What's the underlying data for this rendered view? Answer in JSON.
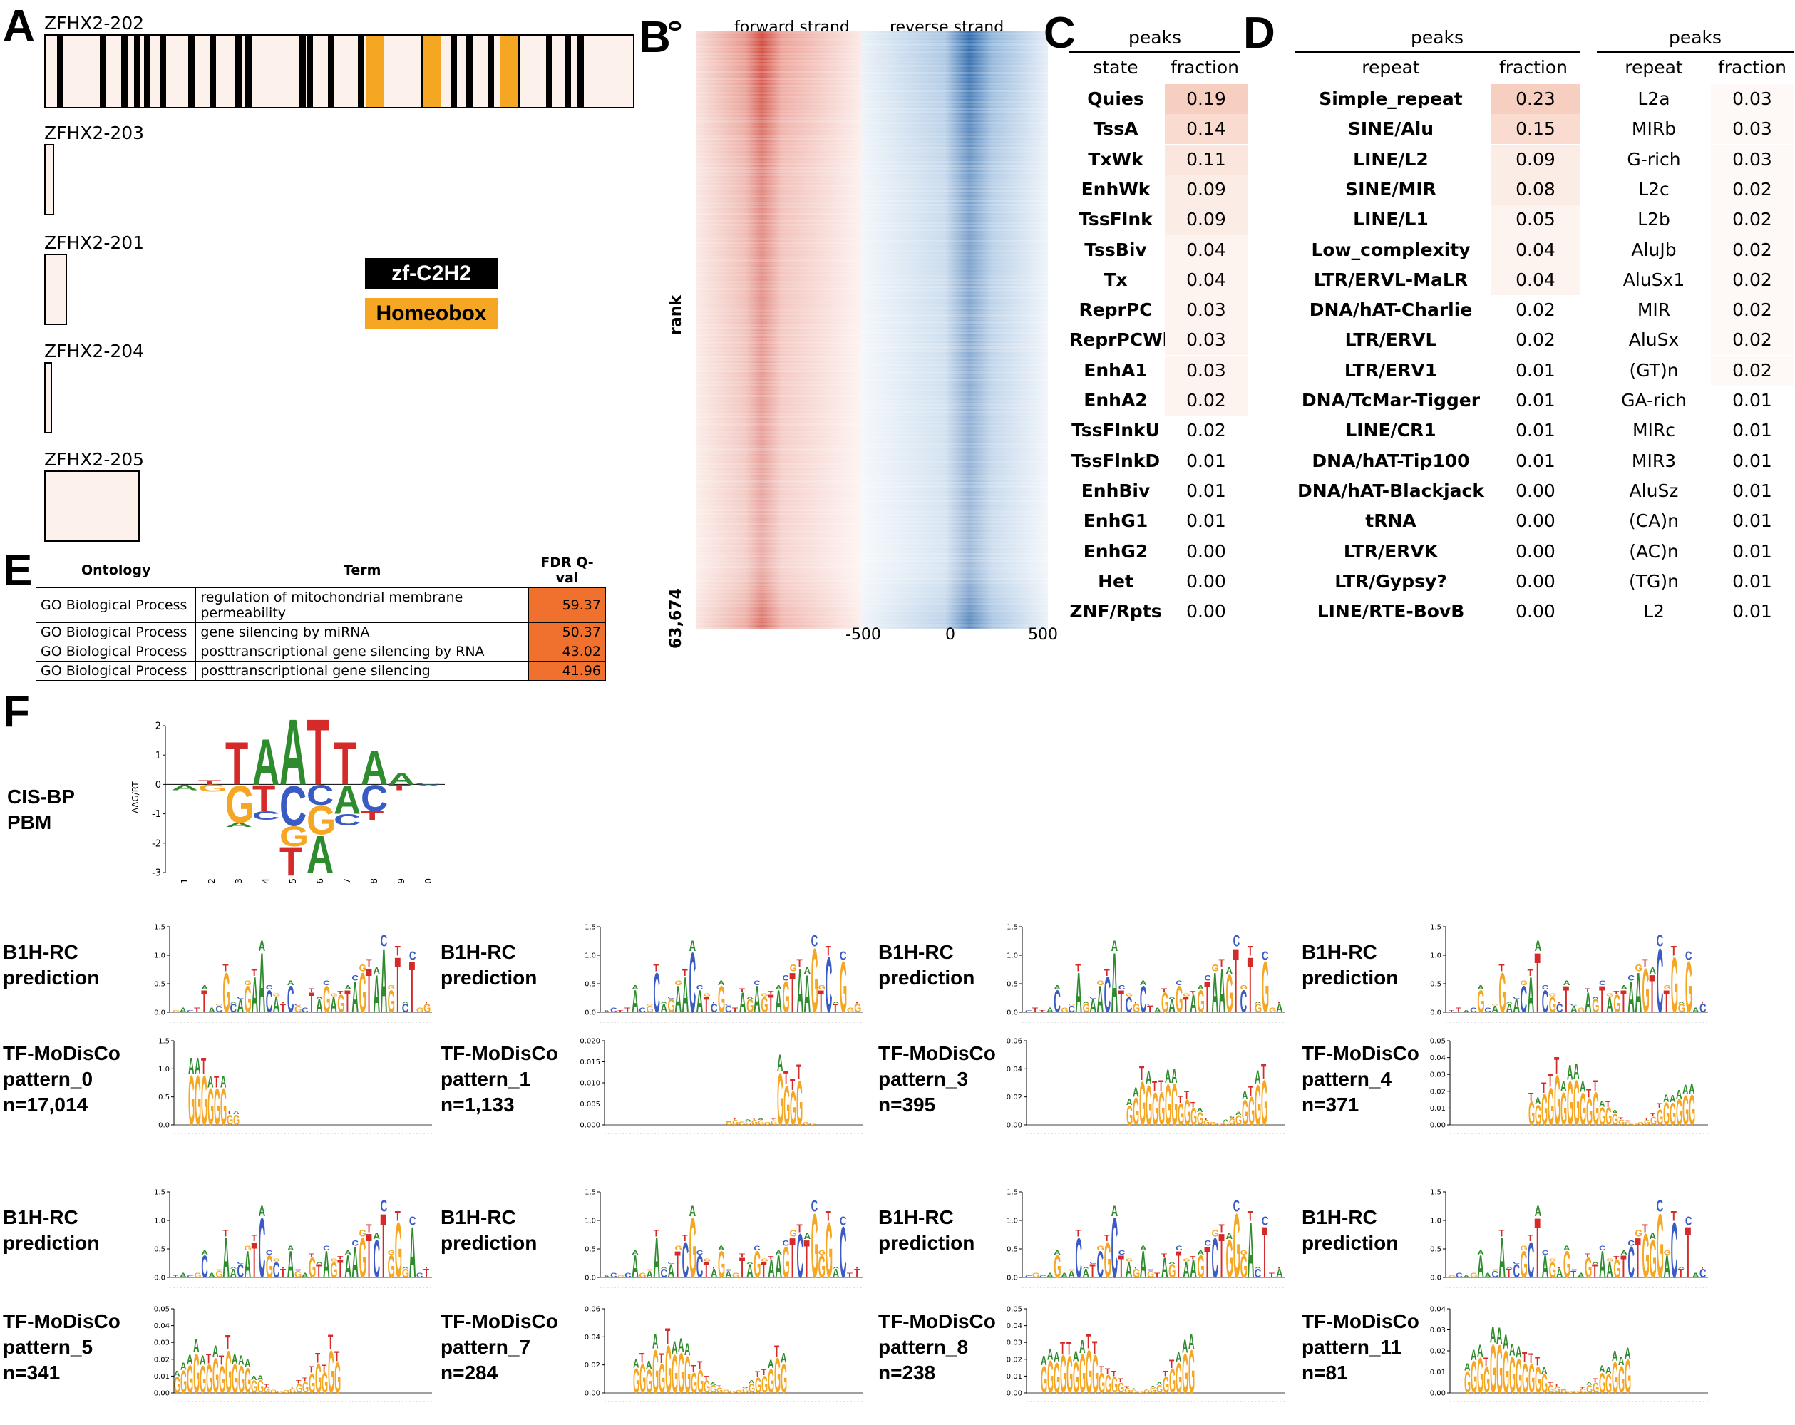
{
  "panels": {
    "A": "A",
    "B": "B",
    "C": "C",
    "D": "D",
    "E": "E",
    "F": "F"
  },
  "panel_a": {
    "transcripts": [
      "ZFHX2-202",
      "ZFHX2-203",
      "ZFHX2-201",
      "ZFHX2-204",
      "ZFHX2-205"
    ],
    "legend": [
      {
        "label": "zf-C2H2",
        "color": "#000000",
        "text_color": "#ffffff"
      },
      {
        "label": "Homeobox",
        "color": "#f5a623",
        "text_color": "#000000"
      }
    ],
    "colors": {
      "box_fill": "#fdf1ec",
      "zf": "#000000",
      "homeobox": "#f5a623"
    }
  },
  "panel_b": {
    "title_forward": "forward strand",
    "title_reverse": "reverse strand",
    "y_label": "rank",
    "y_top": "0",
    "y_bottom": "63,674",
    "x_ticks": [
      "-500",
      "0",
      "500"
    ],
    "colors": {
      "forward": "#c8322a",
      "reverse": "#2c6fb5"
    }
  },
  "panel_c": {
    "header": "peaks",
    "col_state": "state",
    "col_fraction": "fraction",
    "rows": [
      {
        "state": "Quies",
        "fraction": "0.19"
      },
      {
        "state": "TssA",
        "fraction": "0.14"
      },
      {
        "state": "TxWk",
        "fraction": "0.11"
      },
      {
        "state": "EnhWk",
        "fraction": "0.09"
      },
      {
        "state": "TssFlnk",
        "fraction": "0.09"
      },
      {
        "state": "TssBiv",
        "fraction": "0.04"
      },
      {
        "state": "Tx",
        "fraction": "0.04"
      },
      {
        "state": "ReprPC",
        "fraction": "0.03"
      },
      {
        "state": "ReprPCWk",
        "fraction": "0.03"
      },
      {
        "state": "EnhA1",
        "fraction": "0.03"
      },
      {
        "state": "EnhA2",
        "fraction": "0.02"
      },
      {
        "state": "TssFlnkU",
        "fraction": "0.02"
      },
      {
        "state": "TssFlnkD",
        "fraction": "0.01"
      },
      {
        "state": "EnhBiv",
        "fraction": "0.01"
      },
      {
        "state": "EnhG1",
        "fraction": "0.01"
      },
      {
        "state": "EnhG2",
        "fraction": "0.00"
      },
      {
        "state": "Het",
        "fraction": "0.00"
      },
      {
        "state": "ZNF/Rpts",
        "fraction": "0.00"
      }
    ]
  },
  "panel_d": {
    "header": "peaks",
    "col_repeat": "repeat",
    "col_fraction": "fraction",
    "rows_left": [
      {
        "repeat": "Simple_repeat",
        "fraction": "0.23"
      },
      {
        "repeat": "SINE/Alu",
        "fraction": "0.15"
      },
      {
        "repeat": "LINE/L2",
        "fraction": "0.09"
      },
      {
        "repeat": "SINE/MIR",
        "fraction": "0.08"
      },
      {
        "repeat": "LINE/L1",
        "fraction": "0.05"
      },
      {
        "repeat": "Low_complexity",
        "fraction": "0.04"
      },
      {
        "repeat": "LTR/ERVL-MaLR",
        "fraction": "0.04"
      },
      {
        "repeat": "DNA/hAT-Charlie",
        "fraction": "0.02"
      },
      {
        "repeat": "LTR/ERVL",
        "fraction": "0.02"
      },
      {
        "repeat": "LTR/ERV1",
        "fraction": "0.01"
      },
      {
        "repeat": "DNA/TcMar-Tigger",
        "fraction": "0.01"
      },
      {
        "repeat": "LINE/CR1",
        "fraction": "0.01"
      },
      {
        "repeat": "DNA/hAT-Tip100",
        "fraction": "0.01"
      },
      {
        "repeat": "DNA/hAT-Blackjack",
        "fraction": "0.00"
      },
      {
        "repeat": "tRNA",
        "fraction": "0.00"
      },
      {
        "repeat": "LTR/ERVK",
        "fraction": "0.00"
      },
      {
        "repeat": "LTR/Gypsy?",
        "fraction": "0.00"
      },
      {
        "repeat": "LINE/RTE-BovB",
        "fraction": "0.00"
      }
    ],
    "rows_right": [
      {
        "repeat": "L2a",
        "fraction": "0.03"
      },
      {
        "repeat": "MIRb",
        "fraction": "0.03"
      },
      {
        "repeat": "G-rich",
        "fraction": "0.03"
      },
      {
        "repeat": "L2c",
        "fraction": "0.02"
      },
      {
        "repeat": "L2b",
        "fraction": "0.02"
      },
      {
        "repeat": "AluJb",
        "fraction": "0.02"
      },
      {
        "repeat": "AluSx1",
        "fraction": "0.02"
      },
      {
        "repeat": "MIR",
        "fraction": "0.02"
      },
      {
        "repeat": "AluSx",
        "fraction": "0.02"
      },
      {
        "repeat": "(GT)n",
        "fraction": "0.02"
      },
      {
        "repeat": "GA-rich",
        "fraction": "0.01"
      },
      {
        "repeat": "MIRc",
        "fraction": "0.01"
      },
      {
        "repeat": "MIR3",
        "fraction": "0.01"
      },
      {
        "repeat": "AluSz",
        "fraction": "0.01"
      },
      {
        "repeat": "(CA)n",
        "fraction": "0.01"
      },
      {
        "repeat": "(AC)n",
        "fraction": "0.01"
      },
      {
        "repeat": "(TG)n",
        "fraction": "0.01"
      },
      {
        "repeat": "L2",
        "fraction": "0.01"
      }
    ]
  },
  "panel_e": {
    "col_ontology": "Ontology",
    "col_term": "Term",
    "col_fdr": "FDR Q-val",
    "rows": [
      {
        "ontology": "GO Biological Process",
        "term": "regulation of mitochondrial membrane permeability",
        "fdr": "59.37"
      },
      {
        "ontology": "GO Biological Process",
        "term": "gene silencing by miRNA",
        "fdr": "50.37"
      },
      {
        "ontology": "GO Biological Process",
        "term": "posttranscriptional gene silencing by RNA",
        "fdr": "43.02"
      },
      {
        "ontology": "GO Biological Process",
        "term": "posttranscriptional gene silencing",
        "fdr": "41.96"
      }
    ],
    "fdr_color": "#f0702e"
  },
  "panel_f": {
    "cisbp_label": "CIS-BP\nPBM",
    "cisbp_ylabel": "ΔΔG/RT",
    "cisbp_yticks": [
      "2",
      "1",
      "0",
      "-1",
      "-2",
      "-3"
    ],
    "cisbp_xticks": [
      "1",
      "2",
      "3",
      "4",
      "5",
      "6",
      "7",
      "8",
      "9",
      "10"
    ],
    "b1h_label": "B1H-RC\nprediction",
    "modisco": [
      {
        "label": "TF-MoDisCo\npattern_0\nn=17,014",
        "yticks": [
          "1.5",
          "1.0",
          "0.5",
          "0.0"
        ]
      },
      {
        "label": "TF-MoDisCo\npattern_1\nn=1,133",
        "yticks": [
          "0.020",
          "0.015",
          "0.010",
          "0.005",
          "0.000"
        ]
      },
      {
        "label": "TF-MoDisCo\npattern_3\nn=395",
        "yticks": [
          "0.06",
          "0.04",
          "0.02",
          "0.00"
        ]
      },
      {
        "label": "TF-MoDisCo\npattern_4\nn=371",
        "yticks": [
          "0.05",
          "0.04",
          "0.03",
          "0.02",
          "0.01",
          "0.00"
        ]
      },
      {
        "label": "TF-MoDisCo\npattern_5\nn=341",
        "yticks": [
          "0.05",
          "0.04",
          "0.03",
          "0.02",
          "0.01",
          "0.00"
        ]
      },
      {
        "label": "TF-MoDisCo\npattern_7\nn=284",
        "yticks": [
          "0.06",
          "0.04",
          "0.02",
          "0.00"
        ]
      },
      {
        "label": "TF-MoDisCo\npattern_8\nn=238",
        "yticks": [
          "0.05",
          "0.04",
          "0.03",
          "0.02",
          "0.01",
          "0.00"
        ]
      },
      {
        "label": "TF-MoDisCo\npattern_11\nn=81",
        "yticks": [
          "0.04",
          "0.03",
          "0.02",
          "0.01",
          "0.00"
        ]
      }
    ],
    "b1h_yticks": [
      "1.5",
      "1.0",
      "0.5",
      "0.0"
    ],
    "colors": {
      "A": "#2e8b2e",
      "C": "#3b5bc4",
      "G": "#f5a623",
      "T": "#d42a2a"
    }
  }
}
